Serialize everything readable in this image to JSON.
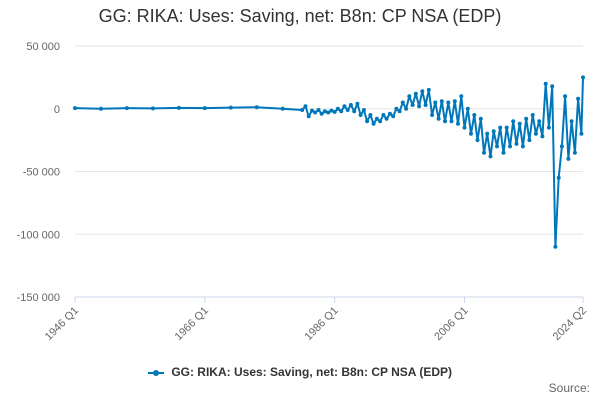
{
  "title": "GG: RIKA: Uses: Saving, net: B8n: CP NSA (EDP)",
  "legend_label": "GG: RIKA: Uses: Saving, net: B8n: CP NSA (EDP)",
  "source_label": "Source:",
  "colors": {
    "series": "#0077bb",
    "grid": "#e6e6e6",
    "axis": "#ccd6eb"
  },
  "chart_data": {
    "type": "line",
    "title": "GG: RIKA: Uses: Saving, net: B8n: CP NSA (EDP)",
    "xlabel": "",
    "ylabel": "",
    "ylim": [
      -150000,
      50000
    ],
    "yticks": [
      50000,
      0,
      -50000,
      -100000,
      -150000
    ],
    "ytick_labels": [
      "50 000",
      "0",
      "-50 000",
      "-100 000",
      "-150 000"
    ],
    "xticks": [
      "1946 Q1",
      "1966 Q1",
      "1986 Q1",
      "2006 Q1",
      "2024 Q2"
    ],
    "legend_position": "bottom",
    "grid": true,
    "series": [
      {
        "name": "GG: RIKA: Uses: Saving, net: B8n: CP NSA (EDP)",
        "x": [
          "1946 Q1",
          "1950 Q1",
          "1954 Q1",
          "1958 Q1",
          "1962 Q1",
          "1966 Q1",
          "1970 Q1",
          "1974 Q1",
          "1978 Q1",
          "1981 Q1",
          "1981 Q3",
          "1982 Q1",
          "1982 Q3",
          "1983 Q1",
          "1983 Q3",
          "1984 Q1",
          "1984 Q3",
          "1985 Q1",
          "1985 Q3",
          "1986 Q1",
          "1986 Q3",
          "1987 Q1",
          "1987 Q3",
          "1988 Q1",
          "1988 Q3",
          "1989 Q1",
          "1989 Q3",
          "1990 Q1",
          "1990 Q3",
          "1991 Q1",
          "1991 Q3",
          "1992 Q1",
          "1992 Q3",
          "1993 Q1",
          "1993 Q3",
          "1994 Q1",
          "1994 Q3",
          "1995 Q1",
          "1995 Q3",
          "1996 Q1",
          "1996 Q3",
          "1997 Q1",
          "1997 Q3",
          "1998 Q1",
          "1998 Q3",
          "1999 Q1",
          "1999 Q3",
          "2000 Q1",
          "2000 Q3",
          "2001 Q1",
          "2001 Q3",
          "2002 Q1",
          "2002 Q3",
          "2003 Q1",
          "2003 Q3",
          "2004 Q1",
          "2004 Q3",
          "2005 Q1",
          "2005 Q3",
          "2006 Q1",
          "2006 Q3",
          "2007 Q1",
          "2007 Q3",
          "2008 Q1",
          "2008 Q3",
          "2009 Q1",
          "2009 Q3",
          "2010 Q1",
          "2010 Q3",
          "2011 Q1",
          "2011 Q3",
          "2012 Q1",
          "2012 Q3",
          "2013 Q1",
          "2013 Q3",
          "2014 Q1",
          "2014 Q3",
          "2015 Q1",
          "2015 Q3",
          "2016 Q1",
          "2016 Q3",
          "2017 Q1",
          "2017 Q3",
          "2018 Q1",
          "2018 Q3",
          "2019 Q1",
          "2019 Q3",
          "2020 Q1",
          "2020 Q3",
          "2021 Q1",
          "2021 Q3",
          "2022 Q1",
          "2022 Q3",
          "2023 Q1",
          "2023 Q3",
          "2024 Q1",
          "2024 Q2"
        ],
        "values": [
          500,
          0,
          500,
          300,
          700,
          500,
          900,
          1200,
          0,
          -1000,
          2000,
          -6000,
          -1500,
          -3000,
          -1000,
          -4000,
          -2000,
          -3000,
          -1500,
          -2500,
          0,
          -2000,
          2000,
          -1000,
          3000,
          -2000,
          4000,
          -5000,
          -1000,
          -10000,
          -5000,
          -12000,
          -8000,
          -10000,
          -5000,
          -8000,
          -4000,
          -6000,
          0,
          -2000,
          5000,
          0,
          10000,
          3000,
          12000,
          2000,
          14000,
          3000,
          15000,
          -5000,
          5000,
          -8000,
          6000,
          -10000,
          5000,
          -10000,
          6000,
          -12000,
          10000,
          -15000,
          0,
          -20000,
          -5000,
          -25000,
          -8000,
          -35000,
          -20000,
          -38000,
          -18000,
          -30000,
          -15000,
          -35000,
          -15000,
          -30000,
          -10000,
          -28000,
          -12000,
          -30000,
          -8000,
          -25000,
          -5000,
          -20000,
          -10000,
          -22000,
          20000,
          -15000,
          18000,
          -110000,
          -55000,
          -30000,
          10000,
          -40000,
          -10000,
          -35000,
          8000,
          -20000,
          25000
        ]
      }
    ]
  }
}
